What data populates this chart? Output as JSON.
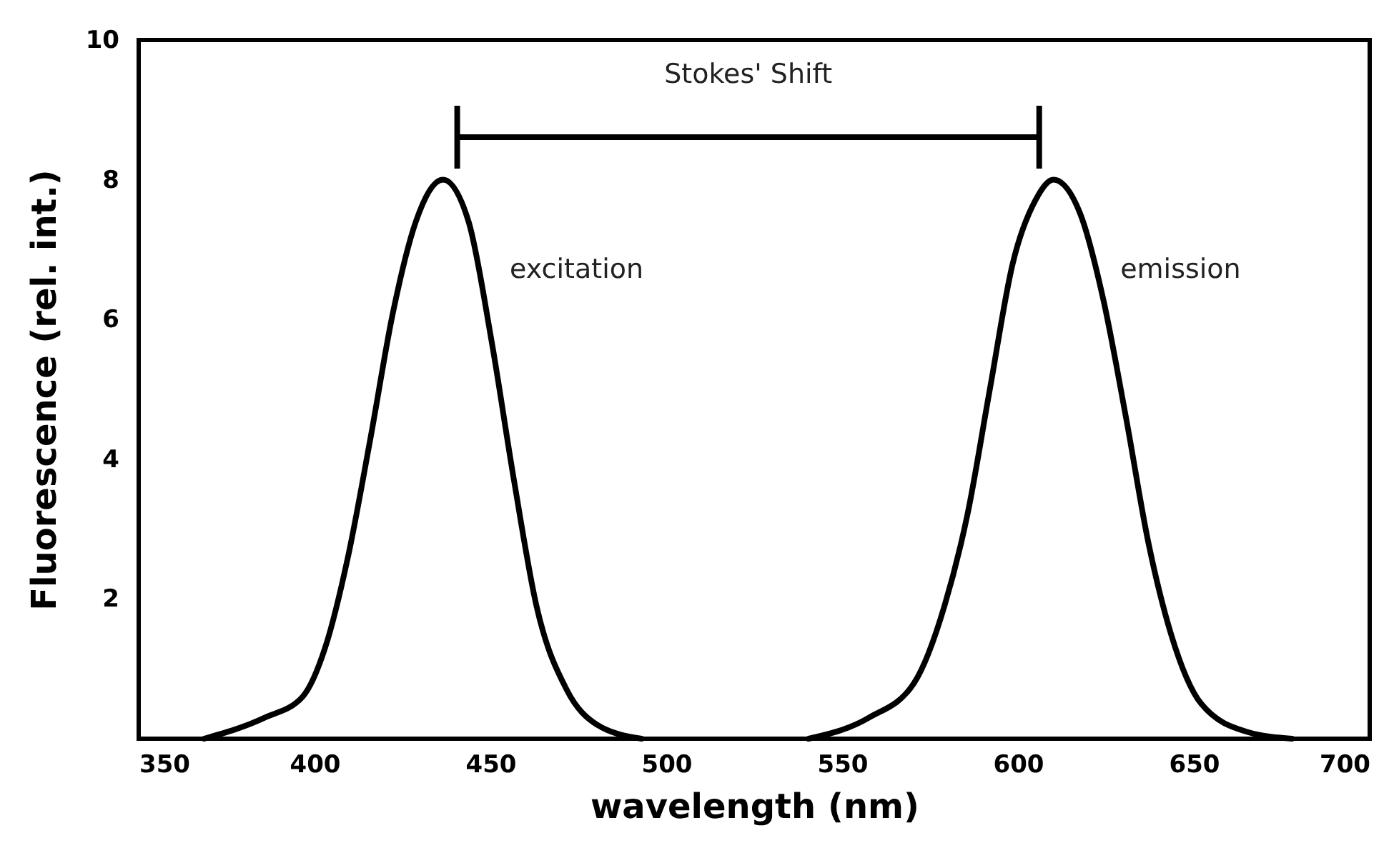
{
  "chart_data": {
    "type": "line",
    "xlabel": "wavelength (nm)",
    "ylabel": "Fluorescence (rel. int.)",
    "xlim": [
      350,
      700
    ],
    "xticks": [
      350,
      400,
      450,
      500,
      550,
      600,
      650,
      700
    ],
    "ylim": [
      0,
      10
    ],
    "yticks": [
      2,
      4,
      6,
      8,
      10
    ],
    "grid": false,
    "legend": false,
    "marker": "none",
    "line_style": "solid",
    "series": [
      {
        "name": "excitation",
        "color": "#000000",
        "x": [
          368.6,
          385.8,
          396.6,
          403,
          409.5,
          415.9,
          422.3,
          428.8,
          436.5,
          443.8,
          450.3,
          456.7,
          463.1,
          471.7,
          480.3,
          493
        ],
        "values": [
          0,
          0.3,
          0.6,
          1.3,
          2.6,
          4.3,
          6.1,
          7.4,
          8,
          7.4,
          5.7,
          3.7,
          1.9,
          0.7,
          0.2,
          0
        ]
      },
      {
        "name": "emission",
        "color": "#000000",
        "x": [
          540.5,
          557.6,
          570.5,
          579.1,
          585.6,
          592,
          598.5,
          604.9,
          610.1,
          617.8,
          624.2,
          630.7,
          637.1,
          643.5,
          652.1,
          665,
          677.9
        ],
        "values": [
          0,
          0.3,
          0.8,
          1.9,
          3.2,
          5,
          6.8,
          7.7,
          8,
          7.5,
          6.3,
          4.6,
          2.8,
          1.5,
          0.5,
          0.1,
          0
        ]
      }
    ],
    "annotations": [
      "Stokes' Shift"
    ]
  }
}
